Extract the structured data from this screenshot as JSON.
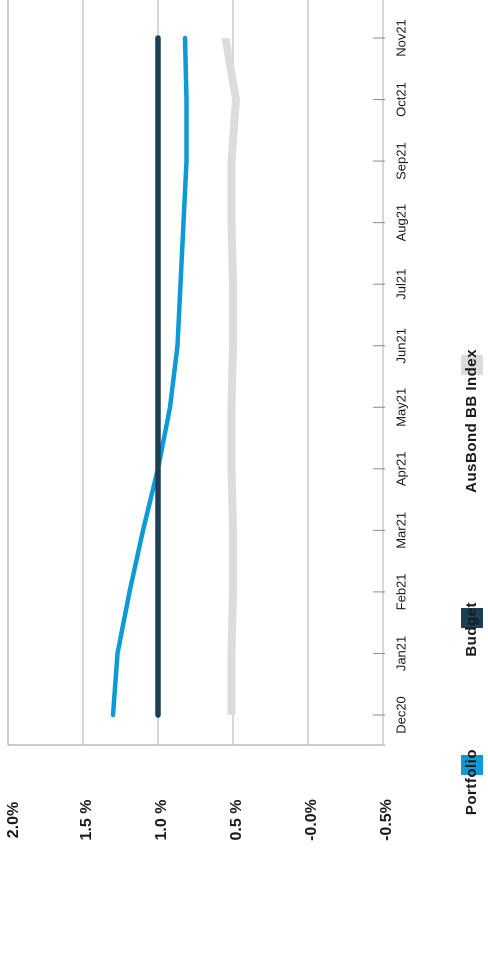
{
  "chart_data": {
    "type": "line",
    "orientation": "rotated-90",
    "title": "",
    "xlabel": "",
    "ylabel": "",
    "categories": [
      "Dec20",
      "Jan21",
      "Feb21",
      "Mar21",
      "Apr21",
      "May21",
      "Jun21",
      "Jul21",
      "Aug21",
      "Sep21",
      "Oct21",
      "Nov21"
    ],
    "ylim": [
      -0.5,
      2.0
    ],
    "y_ticks": [
      {
        "value": 2.0,
        "label": "2.0%"
      },
      {
        "value": 1.5,
        "label": "1.5 %"
      },
      {
        "value": 1.0,
        "label": "1.0 %"
      },
      {
        "value": 0.5,
        "label": "0.5 %"
      },
      {
        "value": 0.0,
        "label": "-0.0%"
      },
      {
        "value": -0.5,
        "label": "-0.5%"
      }
    ],
    "grid": true,
    "legend_position": "bottom",
    "series": [
      {
        "name": "Portfolio",
        "color": "#0d9ad6",
        "kind": "line",
        "values": [
          1.3,
          1.27,
          1.19,
          1.1,
          1.0,
          0.92,
          0.87,
          0.85,
          0.83,
          0.81,
          0.81,
          0.82
        ]
      },
      {
        "name": "Budget",
        "color": "#1d3f55",
        "kind": "line",
        "values": [
          1.0,
          1.0,
          1.0,
          1.0,
          1.0,
          1.0,
          1.0,
          1.0,
          1.0,
          1.0,
          1.0,
          1.0
        ]
      },
      {
        "name": "AusBond BB Index",
        "color": "#dcdcdc",
        "kind": "area",
        "values": [
          0.51,
          0.51,
          0.5,
          0.5,
          0.51,
          0.51,
          0.5,
          0.5,
          0.51,
          0.51,
          0.48,
          0.55
        ]
      }
    ]
  }
}
